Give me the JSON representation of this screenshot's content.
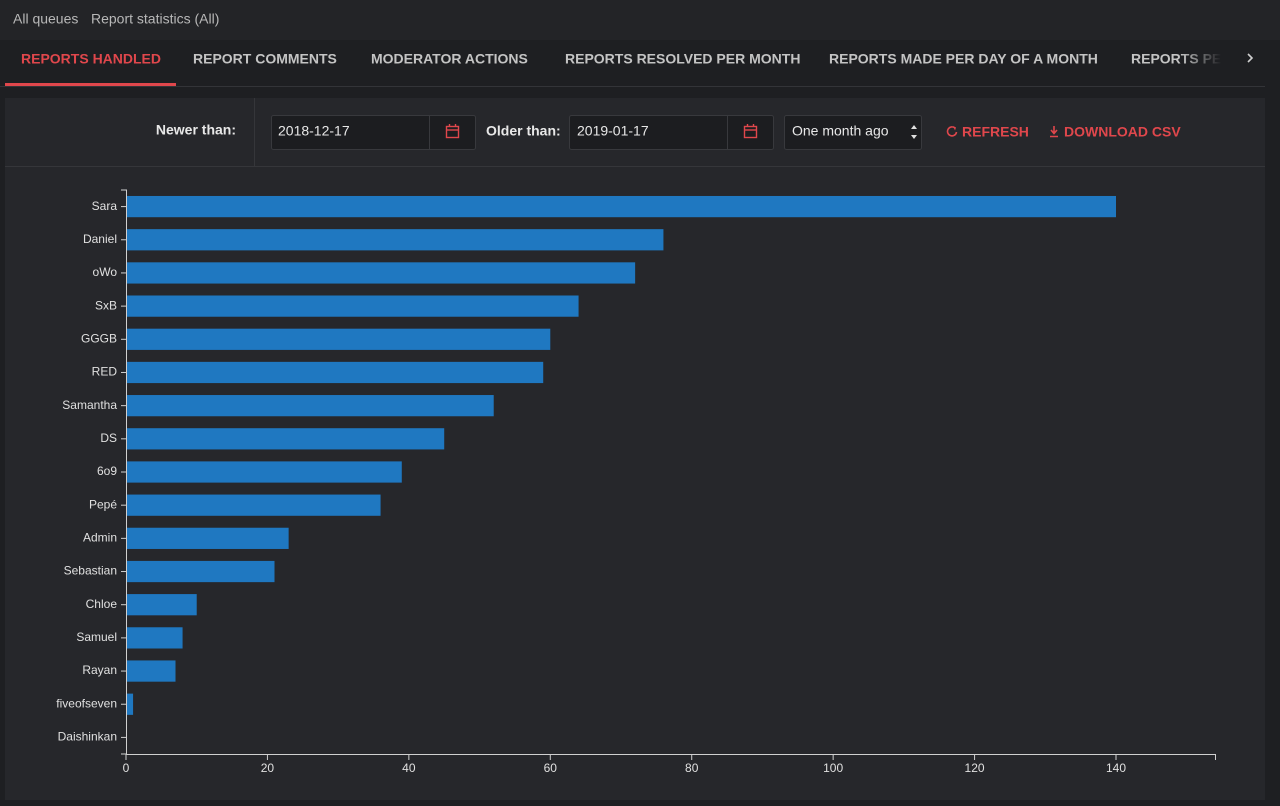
{
  "breadcrumb": [
    "All queues",
    "Report statistics (All)"
  ],
  "tabs": [
    "REPORTS HANDLED",
    "REPORT COMMENTS",
    "MODERATOR ACTIONS",
    "REPORTS RESOLVED PER MONTH",
    "REPORTS MADE PER DAY OF A MONTH",
    "REPORTS PE"
  ],
  "filters": {
    "newer_label": "Newer than:",
    "newer_value": "2018-12-17",
    "older_label": "Older than:",
    "older_value": "2019-01-17",
    "range": "One month ago",
    "refresh": "REFRESH",
    "download": "DOWNLOAD CSV"
  },
  "chart_data": {
    "type": "bar",
    "orientation": "horizontal",
    "categories": [
      "Sara",
      "Daniel",
      "oWo",
      "SxB",
      "GGGB",
      "RED",
      "Samantha",
      "DS",
      "6o9",
      "Pepé",
      "Admin",
      "Sebastian",
      "Chloe",
      "Samuel",
      "Rayan",
      "fiveofseven",
      "Daishinkan"
    ],
    "values": [
      140,
      76,
      72,
      64,
      60,
      59,
      52,
      45,
      39,
      36,
      23,
      21,
      10,
      8,
      7,
      1,
      0
    ],
    "color": "#1f78c1",
    "xlim": [
      0,
      154
    ],
    "xticks": [
      0,
      20,
      40,
      60,
      80,
      100,
      120,
      140
    ]
  }
}
